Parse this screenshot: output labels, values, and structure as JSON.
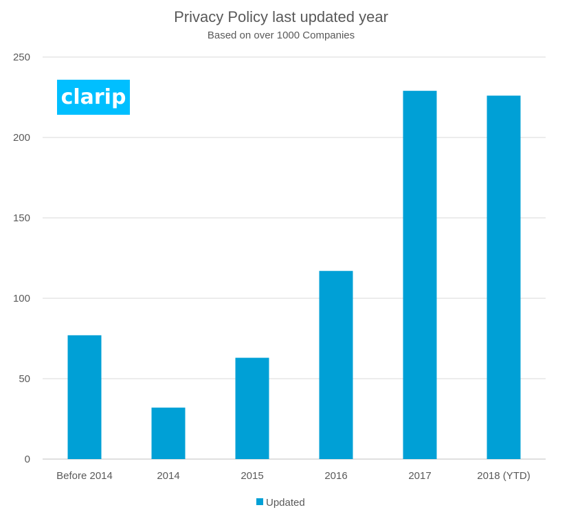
{
  "chart_data": {
    "type": "bar",
    "title": "Privacy Policy last updated year",
    "subtitle": "Based on over 1000 Companies",
    "categories": [
      "Before 2014",
      "2014",
      "2015",
      "2016",
      "2017",
      "2018 (YTD)"
    ],
    "series": [
      {
        "name": "Updated",
        "values": [
          77,
          32,
          63,
          117,
          229,
          226
        ],
        "color": "#00a0d6"
      }
    ],
    "xlabel": "",
    "ylabel": "",
    "ylim": [
      0,
      250
    ],
    "yticks": [
      0,
      50,
      100,
      150,
      200,
      250
    ],
    "grid": true,
    "legend": "bottom-center"
  },
  "logo": {
    "text": "clarip",
    "background": "#00bfff",
    "text_color": "#ffffff"
  },
  "colors": {
    "text": "#595959",
    "grid": "#d9d9d9",
    "axis": "#bfbfbf"
  }
}
